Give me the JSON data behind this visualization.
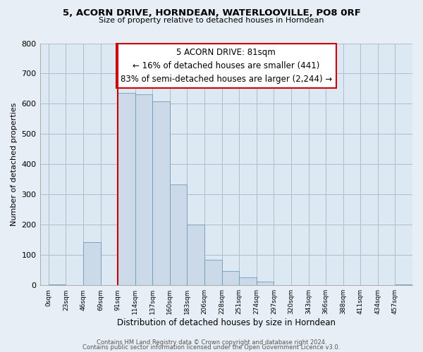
{
  "title_line1": "5, ACORN DRIVE, HORNDEAN, WATERLOOVILLE, PO8 0RF",
  "title_line2": "Size of property relative to detached houses in Horndean",
  "xlabel": "Distribution of detached houses by size in Horndean",
  "ylabel": "Number of detached properties",
  "bin_labels": [
    "0sqm",
    "23sqm",
    "46sqm",
    "69sqm",
    "91sqm",
    "114sqm",
    "137sqm",
    "160sqm",
    "183sqm",
    "206sqm",
    "228sqm",
    "251sqm",
    "274sqm",
    "297sqm",
    "320sqm",
    "343sqm",
    "366sqm",
    "388sqm",
    "411sqm",
    "434sqm",
    "457sqm"
  ],
  "bar_heights": [
    2,
    0,
    143,
    0,
    637,
    632,
    609,
    333,
    201,
    84,
    46,
    27,
    13,
    1,
    0,
    0,
    0,
    0,
    0,
    0,
    2
  ],
  "bar_color": "#ccd9e8",
  "bar_edge_color": "#7099bb",
  "property_line_color": "#cc0000",
  "property_line_bin_index": 4,
  "annotation_text": "5 ACORN DRIVE: 81sqm\n← 16% of detached houses are smaller (441)\n83% of semi-detached houses are larger (2,244) →",
  "annotation_box_color": "#ffffff",
  "annotation_box_edge_color": "#cc0000",
  "ylim": [
    0,
    800
  ],
  "yticks": [
    0,
    100,
    200,
    300,
    400,
    500,
    600,
    700,
    800
  ],
  "footer_line1": "Contains HM Land Registry data © Crown copyright and database right 2024.",
  "footer_line2": "Contains public sector information licensed under the Open Government Licence v3.0.",
  "background_color": "#e8eef5",
  "plot_background_color": "#dce8f2"
}
